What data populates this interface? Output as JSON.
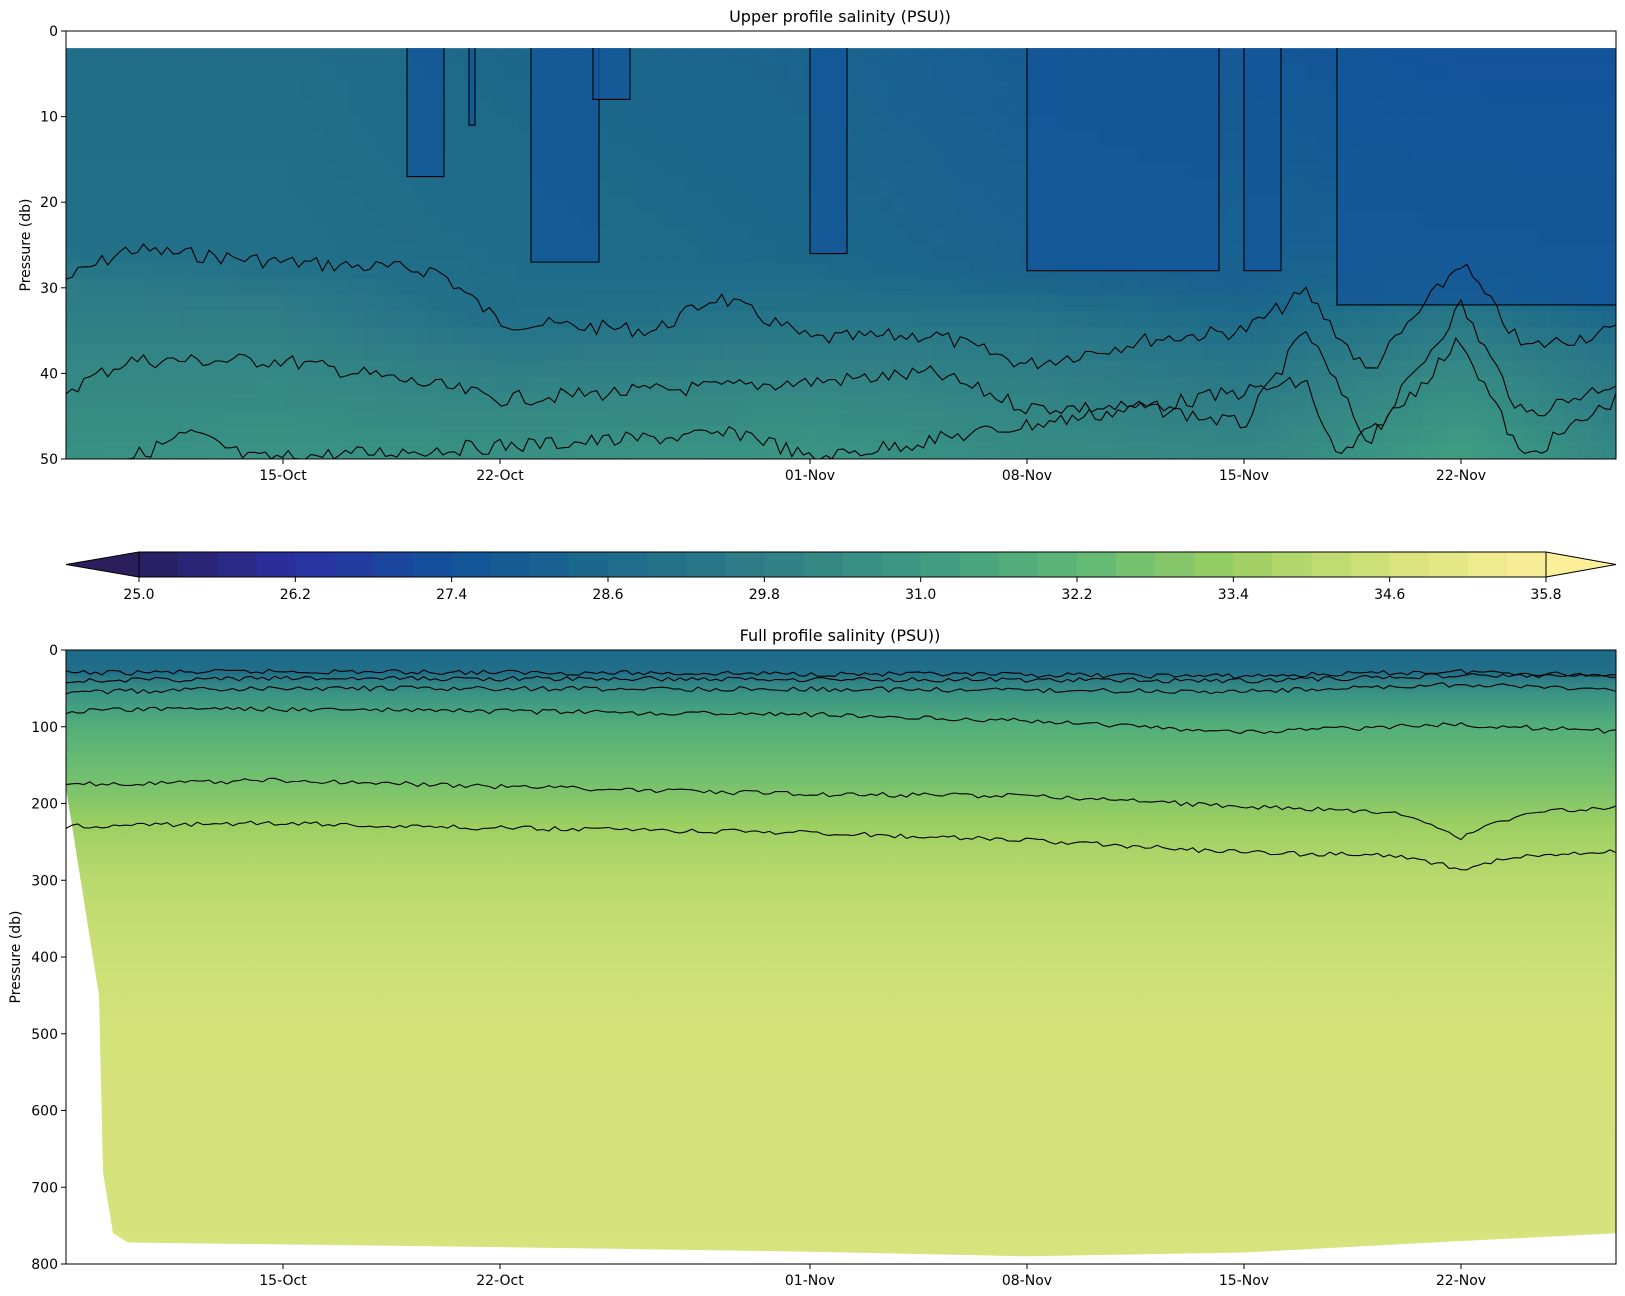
{
  "chart_data": [
    {
      "type": "heatmap",
      "subtype": "filled contour",
      "title": "Upper profile salinity (PSU))",
      "ylabel": "Pressure (db)",
      "xlabel": "",
      "ylim": [
        50,
        0
      ],
      "yticks": [
        0,
        10,
        20,
        30,
        40,
        50
      ],
      "x_range": [
        "2023-10-08",
        "2023-11-27"
      ],
      "xticks": [
        {
          "date": "2023-10-15",
          "label": "15-Oct"
        },
        {
          "date": "2023-10-22",
          "label": "22-Oct"
        },
        {
          "date": "2023-11-01",
          "label": "01-Nov"
        },
        {
          "date": "2023-11-08",
          "label": "08-Nov"
        },
        {
          "date": "2023-11-15",
          "label": "15-Nov"
        },
        {
          "date": "2023-11-22",
          "label": "22-Nov"
        }
      ],
      "surface_data_start_pressure": 2,
      "salinity_sections": [
        {
          "date": "2023-10-08",
          "profile": [
            [
              2,
              28.8
            ],
            [
              25,
              28.9
            ],
            [
              30,
              29.6
            ],
            [
              40,
              30.2
            ],
            [
              50,
              30.6
            ]
          ]
        },
        {
          "date": "2023-10-15",
          "profile": [
            [
              2,
              28.8
            ],
            [
              27,
              28.9
            ],
            [
              32,
              29.6
            ],
            [
              40,
              30.2
            ],
            [
              50,
              30.7
            ]
          ]
        },
        {
          "date": "2023-10-22",
          "profile": [
            [
              2,
              28.5
            ],
            [
              33,
              28.8
            ],
            [
              38,
              29.6
            ],
            [
              44,
              30.2
            ],
            [
              50,
              30.6
            ]
          ]
        },
        {
          "date": "2023-11-01",
          "profile": [
            [
              2,
              28.3
            ],
            [
              27,
              28.5
            ],
            [
              36,
              29.5
            ],
            [
              42,
              30.2
            ],
            [
              50,
              30.8
            ]
          ]
        },
        {
          "date": "2023-11-08",
          "profile": [
            [
              2,
              27.9
            ],
            [
              29,
              28.3
            ],
            [
              35,
              29.4
            ],
            [
              44,
              30.1
            ],
            [
              50,
              30.4
            ]
          ]
        },
        {
          "date": "2023-11-15",
          "profile": [
            [
              2,
              27.7
            ],
            [
              30,
              28.2
            ],
            [
              40,
              29.4
            ],
            [
              46,
              29.9
            ],
            [
              50,
              30.2
            ]
          ]
        },
        {
          "date": "2023-11-22",
          "profile": [
            [
              2,
              27.2
            ],
            [
              25,
              28.1
            ],
            [
              32,
              29.2
            ],
            [
              40,
              30.3
            ],
            [
              50,
              31.2
            ]
          ]
        },
        {
          "date": "2023-11-27",
          "profile": [
            [
              2,
              27.2
            ],
            [
              32,
              28.2
            ],
            [
              38,
              29.3
            ],
            [
              47,
              30.0
            ],
            [
              50,
              30.2
            ]
          ]
        }
      ],
      "contour_lines": [
        {
          "name": "shallow",
          "points": [
            [
              "2023-10-08",
              29
            ],
            [
              "2023-10-10",
              25.5
            ],
            [
              "2023-10-15",
              27
            ],
            [
              "2023-10-20",
              28
            ],
            [
              "2023-10-22",
              34
            ],
            [
              "2023-10-27",
              35
            ],
            [
              "2023-10-29",
              31
            ],
            [
              "2023-11-01",
              36
            ],
            [
              "2023-11-05",
              35.5
            ],
            [
              "2023-11-08",
              39
            ],
            [
              "2023-11-12",
              36
            ],
            [
              "2023-11-15",
              35
            ],
            [
              "2023-11-17",
              30.5
            ],
            [
              "2023-11-19",
              40
            ],
            [
              "2023-11-22",
              27
            ],
            [
              "2023-11-24",
              37
            ],
            [
              "2023-11-27",
              35
            ]
          ]
        },
        {
          "name": "mid",
          "points": [
            [
              "2023-10-08",
              42
            ],
            [
              "2023-10-10",
              38.5
            ],
            [
              "2023-10-15",
              38.5
            ],
            [
              "2023-10-20",
              41.5
            ],
            [
              "2023-10-22",
              43
            ],
            [
              "2023-10-27",
              42
            ],
            [
              "2023-11-01",
              41
            ],
            [
              "2023-11-05",
              40
            ],
            [
              "2023-11-08",
              44
            ],
            [
              "2023-11-12",
              44
            ],
            [
              "2023-11-15",
              46
            ],
            [
              "2023-11-17",
              35
            ],
            [
              "2023-11-19",
              48
            ],
            [
              "2023-11-22",
              32
            ],
            [
              "2023-11-24",
              45
            ],
            [
              "2023-11-27",
              41
            ]
          ]
        },
        {
          "name": "deep",
          "points": [
            [
              "2023-10-10",
              50
            ],
            [
              "2023-10-12",
              47
            ],
            [
              "2023-10-14",
              50
            ],
            [
              "2023-10-30",
              47
            ],
            [
              "2023-11-01",
              50
            ],
            [
              "2023-11-17",
              41
            ],
            [
              "2023-11-18",
              50
            ],
            [
              "2023-11-20",
              44
            ],
            [
              "2023-11-22",
              36
            ],
            [
              "2023-11-24",
              50
            ],
            [
              "2023-11-27",
              43
            ]
          ]
        }
      ],
      "surface_fronts": [
        {
          "date_start": "2023-10-19",
          "date_end": "2023-10-20",
          "min_pressure": 17
        },
        {
          "date_start": "2023-10-21",
          "date_end": "2023-10-21",
          "min_pressure": 11
        },
        {
          "date_start": "2023-10-23",
          "date_end": "2023-10-25",
          "min_pressure": 27
        },
        {
          "date_start": "2023-10-25",
          "date_end": "2023-10-26",
          "min_pressure": 8
        },
        {
          "date_start": "2023-11-01",
          "date_end": "2023-11-02",
          "min_pressure": 26
        },
        {
          "date_start": "2023-11-08",
          "date_end": "2023-11-14",
          "min_pressure": 28
        },
        {
          "date_start": "2023-11-15",
          "date_end": "2023-11-16",
          "min_pressure": 28
        },
        {
          "date_start": "2023-11-18",
          "date_end": "2023-11-27",
          "min_pressure": 32
        }
      ]
    },
    {
      "type": "heatmap",
      "subtype": "filled contour",
      "title": "Full profile salinity (PSU))",
      "ylabel": "Pressure (db)",
      "xlabel": "",
      "ylim": [
        800,
        0
      ],
      "yticks": [
        0,
        100,
        200,
        300,
        400,
        500,
        600,
        700,
        800
      ],
      "x_range": [
        "2023-10-08",
        "2023-11-27"
      ],
      "xticks": [
        {
          "date": "2023-10-15",
          "label": "15-Oct"
        },
        {
          "date": "2023-10-22",
          "label": "22-Oct"
        },
        {
          "date": "2023-11-01",
          "label": "01-Nov"
        },
        {
          "date": "2023-11-08",
          "label": "08-Nov"
        },
        {
          "date": "2023-11-15",
          "label": "15-Nov"
        },
        {
          "date": "2023-11-22",
          "label": "22-Nov"
        }
      ],
      "salinity_by_pressure": [
        [
          0,
          28.6
        ],
        [
          30,
          28.9
        ],
        [
          40,
          29.8
        ],
        [
          60,
          30.8
        ],
        [
          100,
          31.8
        ],
        [
          170,
          32.6
        ],
        [
          230,
          33.4
        ],
        [
          300,
          34.0
        ],
        [
          400,
          34.4
        ],
        [
          500,
          34.6
        ],
        [
          800,
          34.7
        ]
      ],
      "contour_lines": [
        {
          "name": "c1",
          "points": [
            [
              "2023-10-08",
              30
            ],
            [
              "2023-10-15",
              28
            ],
            [
              "2023-11-01",
              31
            ],
            [
              "2023-11-15",
              34
            ],
            [
              "2023-11-22",
              28
            ],
            [
              "2023-11-27",
              33
            ]
          ]
        },
        {
          "name": "c2",
          "points": [
            [
              "2023-10-08",
              40
            ],
            [
              "2023-10-15",
              37
            ],
            [
              "2023-11-01",
              38
            ],
            [
              "2023-11-15",
              40
            ],
            [
              "2023-11-22",
              33
            ],
            [
              "2023-11-27",
              35
            ]
          ]
        },
        {
          "name": "c3",
          "points": [
            [
              "2023-10-08",
              55
            ],
            [
              "2023-10-15",
              50
            ],
            [
              "2023-11-01",
              51
            ],
            [
              "2023-11-15",
              54
            ],
            [
              "2023-11-22",
              45
            ],
            [
              "2023-11-27",
              52
            ]
          ]
        },
        {
          "name": "c4",
          "points": [
            [
              "2023-10-08",
              80
            ],
            [
              "2023-10-12",
              76
            ],
            [
              "2023-10-22",
              80
            ],
            [
              "2023-11-01",
              84
            ],
            [
              "2023-11-08",
              92
            ],
            [
              "2023-11-15",
              107
            ],
            [
              "2023-11-22",
              97
            ],
            [
              "2023-11-27",
              106
            ]
          ]
        },
        {
          "name": "c5",
          "points": [
            [
              "2023-10-08",
              175
            ],
            [
              "2023-10-15",
              170
            ],
            [
              "2023-10-22",
              178
            ],
            [
              "2023-11-01",
              188
            ],
            [
              "2023-11-08",
              190
            ],
            [
              "2023-11-15",
              204
            ],
            [
              "2023-11-20",
              212
            ],
            [
              "2023-11-22",
              245
            ],
            [
              "2023-11-24",
              212
            ],
            [
              "2023-11-27",
              206
            ]
          ]
        },
        {
          "name": "c6",
          "points": [
            [
              "2023-10-08",
              230
            ],
            [
              "2023-10-15",
              225
            ],
            [
              "2023-10-22",
              232
            ],
            [
              "2023-11-01",
              238
            ],
            [
              "2023-11-08",
              248
            ],
            [
              "2023-11-15",
              264
            ],
            [
              "2023-11-20",
              268
            ],
            [
              "2023-11-22",
              285
            ],
            [
              "2023-11-24",
              268
            ],
            [
              "2023-11-27",
              263
            ]
          ]
        }
      ],
      "max_pressure_by_date": [
        [
          "2023-10-08",
          180
        ],
        [
          "2023-10-09",
          450
        ],
        [
          "2023-10-09",
          680
        ],
        [
          "2023-10-09",
          760
        ],
        [
          "2023-10-10",
          772
        ],
        [
          "2023-10-22",
          778
        ],
        [
          "2023-11-01",
          784
        ],
        [
          "2023-11-08",
          790
        ],
        [
          "2023-11-15",
          785
        ],
        [
          "2023-11-22",
          770
        ],
        [
          "2023-11-27",
          760
        ]
      ]
    }
  ],
  "colorbar": {
    "type": "colorbar",
    "range": [
      25.0,
      35.8
    ],
    "extend": "both",
    "ticks": [
      {
        "value": 25.0,
        "label": "25.0"
      },
      {
        "value": 26.2,
        "label": "26.2"
      },
      {
        "value": 27.4,
        "label": "27.4"
      },
      {
        "value": 28.6,
        "label": "28.6"
      },
      {
        "value": 29.8,
        "label": "29.8"
      },
      {
        "value": 31.0,
        "label": "31.0"
      },
      {
        "value": 32.2,
        "label": "32.2"
      },
      {
        "value": 33.4,
        "label": "33.4"
      },
      {
        "value": 34.6,
        "label": "34.6"
      },
      {
        "value": 35.8,
        "label": "35.8"
      }
    ],
    "colormap": "haline",
    "colormap_stops": [
      {
        "value": 25.0,
        "color": "#2a1e5c"
      },
      {
        "value": 26.2,
        "color": "#2b2fa3"
      },
      {
        "value": 27.4,
        "color": "#12539a"
      },
      {
        "value": 28.6,
        "color": "#1d6a8a"
      },
      {
        "value": 29.8,
        "color": "#2f7f86"
      },
      {
        "value": 31.0,
        "color": "#3d9a82"
      },
      {
        "value": 32.2,
        "color": "#5eb876"
      },
      {
        "value": 33.4,
        "color": "#9ccf62"
      },
      {
        "value": 34.6,
        "color": "#d4e27a"
      },
      {
        "value": 35.8,
        "color": "#fdef9a"
      }
    ],
    "over_color": "#fdef9a",
    "under_color": "#2a1e5c"
  },
  "contour_color": "#000000"
}
